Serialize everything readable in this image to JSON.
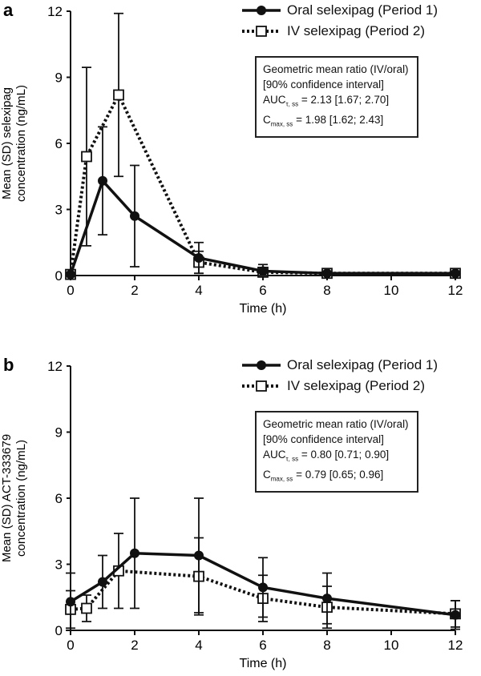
{
  "chart_data": [
    {
      "panel": "a",
      "type": "line",
      "xlabel": "Time (h)",
      "ylabel": [
        "Mean (SD) selexipag",
        "concentration (ng/mL)"
      ],
      "xlim": [
        0,
        12
      ],
      "ylim": [
        0,
        12
      ],
      "xticks": [
        0,
        2,
        4,
        6,
        8,
        10,
        12
      ],
      "yticks": [
        0,
        3,
        6,
        9,
        12
      ],
      "series": [
        {
          "name": "Oral selexipag (Period 1)",
          "marker": "filled-circle",
          "line": "solid",
          "x": [
            0,
            1,
            2,
            4,
            6,
            8,
            12
          ],
          "y": [
            0.05,
            4.3,
            2.7,
            0.8,
            0.2,
            0.1,
            0.1
          ],
          "sd": [
            0,
            2.45,
            2.3,
            0.7,
            0.3,
            0.05,
            0.05
          ]
        },
        {
          "name": "IV selexipag (Period 2)",
          "marker": "open-square",
          "line": "dotted",
          "x": [
            0,
            0.5,
            1.5,
            4,
            6,
            8,
            12
          ],
          "y": [
            0.05,
            5.4,
            8.2,
            0.6,
            0.15,
            0.1,
            0.1
          ],
          "sd": [
            0,
            4.05,
            3.7,
            0.5,
            0.2,
            0.05,
            0.05
          ]
        }
      ],
      "box": {
        "title": "Geometric mean ratio (IV/oral)",
        "subtitle": "[90% confidence interval]",
        "l1_main": "AUC",
        "l1_sub": "τ, ss",
        "l1_val": " = 2.13 [1.67; 2.70]",
        "l2_main": "C",
        "l2_sub": "max, ss",
        "l2_val": " = 1.98 [1.62; 2.43]"
      }
    },
    {
      "panel": "b",
      "type": "line",
      "xlabel": "Time (h)",
      "ylabel": [
        "Mean (SD) ACT-333679",
        "concentration (ng/mL)"
      ],
      "xlim": [
        0,
        12
      ],
      "ylim": [
        0,
        12
      ],
      "xticks": [
        0,
        2,
        4,
        6,
        8,
        10,
        12
      ],
      "yticks": [
        0,
        3,
        6,
        9,
        12
      ],
      "series": [
        {
          "name": "Oral selexipag (Period 1)",
          "marker": "filled-circle",
          "line": "solid",
          "x": [
            0,
            1,
            2,
            4,
            6,
            8,
            12
          ],
          "y": [
            1.3,
            2.2,
            3.5,
            3.4,
            1.95,
            1.45,
            0.7
          ],
          "sd": [
            1.3,
            1.2,
            2.5,
            2.6,
            1.35,
            1.15,
            0.65
          ]
        },
        {
          "name": "IV selexipag (Period 2)",
          "marker": "open-square",
          "line": "dotted",
          "x": [
            0,
            0.5,
            1.5,
            4,
            6,
            8,
            12
          ],
          "y": [
            0.95,
            1.0,
            2.7,
            2.45,
            1.45,
            1.05,
            0.75
          ],
          "sd": [
            0.85,
            0.6,
            1.7,
            1.75,
            1.05,
            0.95,
            0.6
          ]
        }
      ],
      "box": {
        "title": "Geometric mean ratio (IV/oral)",
        "subtitle": "[90% confidence interval]",
        "l1_main": "AUC",
        "l1_sub": "τ, ss",
        "l1_val": " = 0.80 [0.71; 0.90]",
        "l2_main": "C",
        "l2_sub": "max, ss",
        "l2_val": " = 0.79 [0.65; 0.96]"
      }
    }
  ]
}
